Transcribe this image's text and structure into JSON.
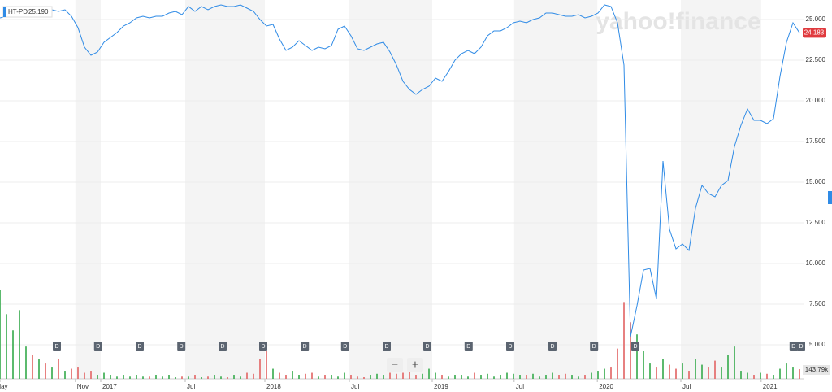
{
  "chart_data": {
    "type": "line",
    "watermark": "yahoo!finance",
    "series": [
      {
        "name": "HT-PD",
        "color": "#2f8be6",
        "values": [
          25.1,
          25.2,
          25.3,
          25.4,
          25.5,
          25.4,
          25.6,
          25.5,
          25.6,
          25.5,
          25.6,
          25.2,
          24.5,
          23.3,
          22.8,
          23.0,
          23.6,
          23.9,
          24.2,
          24.6,
          24.8,
          25.1,
          25.2,
          25.1,
          25.2,
          25.2,
          25.4,
          25.5,
          25.3,
          25.8,
          25.5,
          25.8,
          25.6,
          25.8,
          25.9,
          25.8,
          25.8,
          25.9,
          25.7,
          25.5,
          25.0,
          24.6,
          24.7,
          23.8,
          23.1,
          23.3,
          23.7,
          23.4,
          23.1,
          23.3,
          23.2,
          23.4,
          24.4,
          24.6,
          24.0,
          23.2,
          23.1,
          23.3,
          23.5,
          23.6,
          23.0,
          22.2,
          21.2,
          20.7,
          20.4,
          20.7,
          20.9,
          21.4,
          21.2,
          21.8,
          22.5,
          22.9,
          23.1,
          22.9,
          23.3,
          24.0,
          24.3,
          24.3,
          24.5,
          24.8,
          24.9,
          24.8,
          25.0,
          25.1,
          25.4,
          25.4,
          25.3,
          25.2,
          25.2,
          25.3,
          25.1,
          25.2,
          25.4,
          25.9,
          25.8,
          24.8,
          22.2,
          5.5,
          7.4,
          9.6,
          9.7,
          7.8,
          16.3,
          12.1,
          10.9,
          11.2,
          10.8,
          13.4,
          14.8,
          14.3,
          14.1,
          14.8,
          15.1,
          17.2,
          18.5,
          19.5,
          18.8,
          18.8,
          18.6,
          18.9,
          21.5,
          23.6,
          24.8,
          24.183
        ]
      }
    ],
    "legend_price": {
      "value": 25.19,
      "label": "25.190"
    },
    "current_price": 24.183,
    "xlim": [
      0,
      123
    ],
    "xticks": [
      {
        "value": 0,
        "label": "May"
      },
      {
        "value": 11.6,
        "label": "Nov"
      },
      {
        "value": 15.5,
        "label": "2017"
      },
      {
        "value": 28.5,
        "label": "Jul"
      },
      {
        "value": 40.75,
        "label": "2018"
      },
      {
        "value": 53.75,
        "label": "Jul"
      },
      {
        "value": 66.5,
        "label": "2019"
      },
      {
        "value": 79.1,
        "label": "Jul"
      },
      {
        "value": 91.9,
        "label": "2020"
      },
      {
        "value": 104.75,
        "label": "Jul"
      },
      {
        "value": 117.1,
        "label": "2021"
      }
    ],
    "ylim": [
      2.9,
      26.2
    ],
    "yticks": [
      {
        "value": 5,
        "label": "5.000"
      },
      {
        "value": 7.5,
        "label": "7.500"
      },
      {
        "value": 10,
        "label": "10.000"
      },
      {
        "value": 12.5,
        "label": "12.500"
      },
      {
        "value": 15,
        "label": "15.000"
      },
      {
        "value": 17.5,
        "label": "17.500"
      },
      {
        "value": 20,
        "label": "20.000"
      },
      {
        "value": 22.5,
        "label": "22.500"
      },
      {
        "value": 25,
        "label": "25.000"
      }
    ],
    "volume": {
      "ylim": [
        0,
        2000
      ],
      "up_color": "#3fae55",
      "down_color": "#e36b6b",
      "values": [
        1320,
        960,
        720,
        1020,
        480,
        360,
        300,
        240,
        180,
        300,
        120,
        150,
        180,
        90,
        120,
        60,
        90,
        60,
        45,
        60,
        45,
        60,
        45,
        45,
        60,
        45,
        60,
        30,
        45,
        45,
        60,
        30,
        45,
        60,
        45,
        30,
        60,
        45,
        90,
        75,
        300,
        420,
        150,
        90,
        60,
        120,
        60,
        75,
        90,
        45,
        60,
        60,
        45,
        90,
        60,
        45,
        30,
        60,
        75,
        60,
        90,
        75,
        90,
        120,
        60,
        75,
        150,
        90,
        60,
        45,
        60,
        60,
        45,
        90,
        60,
        75,
        45,
        60,
        90,
        75,
        60,
        60,
        75,
        45,
        60,
        90,
        60,
        75,
        60,
        45,
        60,
        90,
        120,
        150,
        180,
        450,
        1140,
        840,
        660,
        420,
        240,
        180,
        300,
        210,
        150,
        240,
        120,
        300,
        210,
        180,
        270,
        180,
        360,
        480,
        120,
        90,
        60,
        90,
        75,
        60,
        150,
        240,
        180,
        143.79
      ],
      "current": {
        "value": 143.79,
        "label": "143.79k"
      }
    },
    "dividend_markers": [
      {
        "x": 8.75,
        "label": "D"
      },
      {
        "x": 15.1,
        "label": "D"
      },
      {
        "x": 21.5,
        "label": "D"
      },
      {
        "x": 27.9,
        "label": "D"
      },
      {
        "x": 34.25,
        "label": "D"
      },
      {
        "x": 40.5,
        "label": "D"
      },
      {
        "x": 46.9,
        "label": "D"
      },
      {
        "x": 53.1,
        "label": "D"
      },
      {
        "x": 59.5,
        "label": "D"
      },
      {
        "x": 65.75,
        "label": "D"
      },
      {
        "x": 72.1,
        "label": "D"
      },
      {
        "x": 78.5,
        "label": "D"
      },
      {
        "x": 85,
        "label": "D"
      },
      {
        "x": 91.4,
        "label": "D"
      },
      {
        "x": 97.75,
        "label": "D"
      },
      {
        "x": 122.1,
        "label": "D"
      },
      {
        "x": 123.25,
        "label": "D"
      }
    ],
    "zoom_controls": [
      "−",
      "+"
    ]
  }
}
